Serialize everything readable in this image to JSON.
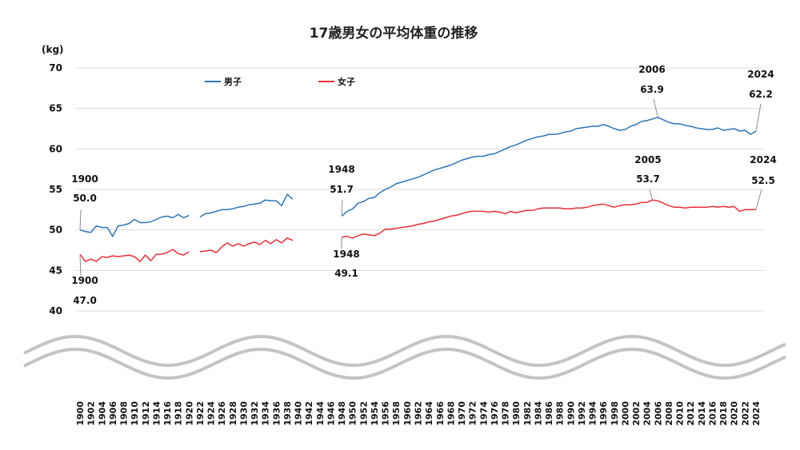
{
  "chart_data": {
    "type": "line",
    "title": "17歳男女の平均体重の推移",
    "ylabel": "(kg)",
    "ylim": [
      40,
      70
    ],
    "yticks": [
      40,
      45,
      50,
      55,
      60,
      65,
      70
    ],
    "xlim": [
      1900,
      2025
    ],
    "xticks": [
      "1900",
      "1902",
      "1904",
      "1906",
      "1908",
      "1910",
      "1912",
      "1914",
      "1916",
      "1918",
      "1920",
      "1922",
      "1924",
      "1926",
      "1928",
      "1930",
      "1932",
      "1934",
      "1936",
      "1938",
      "1940",
      "1942",
      "1944",
      "1946",
      "1948",
      "1950",
      "1952",
      "1954",
      "1956",
      "1958",
      "1960",
      "1962",
      "1964",
      "1966",
      "1968",
      "1970",
      "1972",
      "1974",
      "1976",
      "1978",
      "1980",
      "1982",
      "1984",
      "1986",
      "1988",
      "1990",
      "1992",
      "1994",
      "1996",
      "1998",
      "2000",
      "2002",
      "2004",
      "2006",
      "2008",
      "2010",
      "2012",
      "2014",
      "2016",
      "2018",
      "2020",
      "2022",
      "2024"
    ],
    "grid": true,
    "axis_break": true,
    "legend": "top-left",
    "series": [
      {
        "name": "男子",
        "color": "#2e75b6",
        "segments": [
          {
            "x": [
              1900,
              1901,
              1902,
              1903,
              1904,
              1905,
              1906,
              1907,
              1908,
              1909,
              1910,
              1911,
              1912,
              1913,
              1914,
              1915,
              1916,
              1917,
              1918,
              1919,
              1920
            ],
            "y": [
              50.0,
              49.8,
              49.7,
              50.5,
              50.3,
              50.3,
              49.2,
              50.5,
              50.6,
              50.8,
              51.3,
              50.9,
              50.9,
              51.0,
              51.3,
              51.6,
              51.7,
              51.5,
              51.9,
              51.5,
              51.8
            ]
          },
          {
            "x": [
              1922,
              1923,
              1924,
              1925,
              1926,
              1927,
              1928,
              1929,
              1930,
              1931,
              1932,
              1933,
              1934,
              1935,
              1936,
              1937,
              1938,
              1939
            ],
            "y": [
              51.6,
              52.0,
              52.1,
              52.3,
              52.5,
              52.5,
              52.6,
              52.8,
              52.9,
              53.1,
              53.2,
              53.3,
              53.7,
              53.6,
              53.6,
              53.0,
              54.4,
              53.8
            ]
          },
          {
            "x": [
              1948,
              1949,
              1950,
              1951,
              1952,
              1953,
              1954,
              1955,
              1956,
              1957,
              1958,
              1959,
              1960,
              1961,
              1962,
              1963,
              1964,
              1965,
              1966,
              1967,
              1968,
              1969,
              1970,
              1971,
              1972,
              1973,
              1974,
              1975,
              1976,
              1977,
              1978,
              1979,
              1980,
              1981,
              1982,
              1983,
              1984,
              1985,
              1986,
              1987,
              1988,
              1989,
              1990,
              1991,
              1992,
              1993,
              1994,
              1995,
              1996,
              1997,
              1998,
              1999,
              2000,
              2001,
              2002,
              2003,
              2004,
              2005,
              2006,
              2007,
              2008,
              2009,
              2010,
              2011,
              2012,
              2013,
              2014,
              2015,
              2016,
              2017,
              2018,
              2019,
              2020,
              2021,
              2022,
              2023,
              2024
            ],
            "y": [
              51.7,
              52.3,
              52.6,
              53.3,
              53.5,
              53.9,
              54.0,
              54.6,
              55.0,
              55.3,
              55.7,
              55.9,
              56.1,
              56.3,
              56.5,
              56.8,
              57.1,
              57.4,
              57.6,
              57.8,
              58.0,
              58.3,
              58.6,
              58.8,
              59.0,
              59.1,
              59.1,
              59.3,
              59.4,
              59.7,
              60.0,
              60.3,
              60.5,
              60.8,
              61.1,
              61.3,
              61.5,
              61.6,
              61.8,
              61.8,
              61.9,
              62.1,
              62.2,
              62.5,
              62.6,
              62.7,
              62.8,
              62.8,
              63.0,
              62.8,
              62.5,
              62.3,
              62.4,
              62.8,
              63.0,
              63.4,
              63.5,
              63.7,
              63.9,
              63.6,
              63.3,
              63.1,
              63.1,
              62.9,
              62.8,
              62.6,
              62.5,
              62.4,
              62.4,
              62.6,
              62.3,
              62.4,
              62.5,
              62.2,
              62.3,
              61.8,
              62.2
            ]
          }
        ]
      },
      {
        "name": "女子",
        "color": "#e8303a",
        "segments": [
          {
            "x": [
              1900,
              1901,
              1902,
              1903,
              1904,
              1905,
              1906,
              1907,
              1908,
              1909,
              1910,
              1911,
              1912,
              1913,
              1914,
              1915,
              1916,
              1917,
              1918,
              1919,
              1920
            ],
            "y": [
              47.0,
              46.1,
              46.4,
              46.1,
              46.7,
              46.6,
              46.8,
              46.7,
              46.8,
              46.9,
              46.7,
              46.1,
              46.9,
              46.2,
              47.0,
              47.0,
              47.2,
              47.6,
              47.1,
              46.9,
              47.3
            ]
          },
          {
            "x": [
              1922,
              1923,
              1924,
              1925,
              1926,
              1927,
              1928,
              1929,
              1930,
              1931,
              1932,
              1933,
              1934,
              1935,
              1936,
              1937,
              1938,
              1939
            ],
            "y": [
              47.3,
              47.4,
              47.5,
              47.2,
              47.9,
              48.4,
              48.0,
              48.3,
              48.0,
              48.3,
              48.5,
              48.2,
              48.7,
              48.3,
              48.8,
              48.4,
              49.0,
              48.7
            ]
          },
          {
            "x": [
              1948,
              1949,
              1950,
              1951,
              1952,
              1953,
              1954,
              1955,
              1956,
              1957,
              1958,
              1959,
              1960,
              1961,
              1962,
              1963,
              1964,
              1965,
              1966,
              1967,
              1968,
              1969,
              1970,
              1971,
              1972,
              1973,
              1974,
              1975,
              1976,
              1977,
              1978,
              1979,
              1980,
              1981,
              1982,
              1983,
              1984,
              1985,
              1986,
              1987,
              1988,
              1989,
              1990,
              1991,
              1992,
              1993,
              1994,
              1995,
              1996,
              1997,
              1998,
              1999,
              2000,
              2001,
              2002,
              2003,
              2004,
              2005,
              2006,
              2007,
              2008,
              2009,
              2010,
              2011,
              2012,
              2013,
              2014,
              2015,
              2016,
              2017,
              2018,
              2019,
              2020,
              2021,
              2022,
              2023,
              2024
            ],
            "y": [
              49.1,
              49.2,
              49.0,
              49.3,
              49.5,
              49.4,
              49.3,
              49.6,
              50.1,
              50.1,
              50.2,
              50.3,
              50.4,
              50.5,
              50.7,
              50.8,
              51.0,
              51.1,
              51.3,
              51.5,
              51.7,
              51.8,
              52.0,
              52.2,
              52.3,
              52.3,
              52.3,
              52.2,
              52.3,
              52.2,
              52.0,
              52.3,
              52.1,
              52.3,
              52.4,
              52.4,
              52.6,
              52.7,
              52.7,
              52.7,
              52.7,
              52.6,
              52.6,
              52.7,
              52.7,
              52.8,
              53.0,
              53.1,
              53.2,
              53.0,
              52.8,
              53.0,
              53.1,
              53.1,
              53.2,
              53.4,
              53.4,
              53.7,
              53.6,
              53.3,
              53.0,
              52.8,
              52.8,
              52.7,
              52.8,
              52.8,
              52.8,
              52.8,
              52.9,
              52.8,
              52.9,
              52.8,
              52.9,
              52.3,
              52.5,
              52.5,
              52.5
            ]
          }
        ]
      }
    ],
    "annotations": [
      {
        "year": "1900",
        "value": "50.0",
        "series": "男子"
      },
      {
        "year": "1948",
        "value": "51.7",
        "series": "男子"
      },
      {
        "year": "2006",
        "value": "63.9",
        "series": "男子"
      },
      {
        "year": "2024",
        "value": "62.2",
        "series": "男子"
      },
      {
        "year": "1900",
        "value": "47.0",
        "series": "女子"
      },
      {
        "year": "1948",
        "value": "49.1",
        "series": "女子"
      },
      {
        "year": "2005",
        "value": "53.7",
        "series": "女子"
      },
      {
        "year": "2024",
        "value": "52.5",
        "series": "女子"
      }
    ]
  }
}
